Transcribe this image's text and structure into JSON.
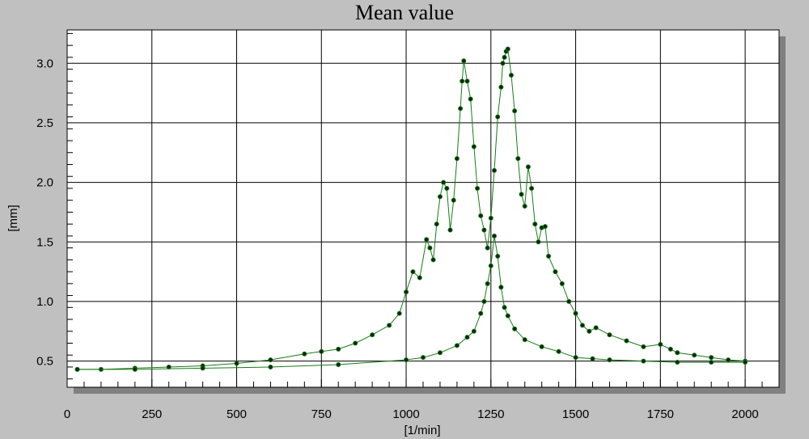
{
  "chart_data": {
    "type": "scatter",
    "title": "Mean value",
    "xlabel": "[1/min]",
    "ylabel": "[mm]",
    "xlim": [
      0,
      2100
    ],
    "ylim": [
      0.28,
      3.28
    ],
    "xticks": [
      0,
      250,
      500,
      750,
      1000,
      1250,
      1500,
      1750,
      2000
    ],
    "yticks": [
      0.5,
      1.0,
      1.5,
      2.0,
      2.5,
      3.0
    ],
    "xtick_labels": [
      "0",
      "250",
      "500",
      "750",
      "1000",
      "1250",
      "1500",
      "1750",
      "2000"
    ],
    "ytick_labels": [
      "0.5",
      "1.0",
      "1.5",
      "2.0",
      "2.5",
      "3.0"
    ],
    "grid": true,
    "colors": {
      "background": "#c0c0c0",
      "plot_background": "#ffffff",
      "shadow": "#808080",
      "grid": "#000000",
      "line": "#1a7a1a",
      "marker": "#0a2a0a"
    },
    "series": [
      {
        "x": [
          30,
          100,
          200,
          300,
          400,
          500,
          600,
          700,
          750,
          800,
          850,
          900,
          950,
          980,
          1000,
          1020,
          1040,
          1060,
          1070,
          1080,
          1090,
          1100,
          1110,
          1120,
          1130,
          1140,
          1150,
          1160,
          1165,
          1170,
          1180,
          1190,
          1200,
          1210,
          1220,
          1230,
          1240,
          1250,
          1260,
          1270,
          1280,
          1285,
          1290,
          1295,
          1300,
          1310,
          1320,
          1330,
          1340,
          1350,
          1360,
          1370,
          1380,
          1390,
          1400,
          1410,
          1420,
          1440,
          1460,
          1480,
          1500,
          1520,
          1540,
          1560,
          1600,
          1650,
          1700,
          1750,
          1780,
          1800,
          1850,
          1900,
          1950,
          2000
        ],
        "y": [
          0.43,
          0.43,
          0.44,
          0.45,
          0.46,
          0.48,
          0.51,
          0.56,
          0.58,
          0.6,
          0.65,
          0.72,
          0.8,
          0.9,
          1.08,
          1.25,
          1.2,
          1.52,
          1.45,
          1.35,
          1.65,
          1.88,
          2.0,
          1.95,
          1.6,
          1.85,
          2.2,
          2.62,
          2.85,
          3.02,
          2.85,
          2.7,
          2.3,
          1.95,
          1.72,
          1.6,
          1.45,
          1.7,
          2.1,
          2.55,
          2.8,
          3.0,
          3.05,
          3.1,
          3.12,
          2.9,
          2.6,
          2.2,
          1.9,
          1.8,
          2.13,
          1.95,
          1.65,
          1.5,
          1.62,
          1.63,
          1.38,
          1.25,
          1.15,
          1.0,
          0.9,
          0.8,
          0.75,
          0.78,
          0.72,
          0.67,
          0.62,
          0.64,
          0.6,
          0.57,
          0.55,
          0.53,
          0.51,
          0.5
        ]
      },
      {
        "x": [
          30,
          200,
          400,
          600,
          800,
          1000,
          1050,
          1100,
          1150,
          1180,
          1200,
          1220,
          1230,
          1240,
          1250,
          1260,
          1270,
          1280,
          1290,
          1300,
          1320,
          1350,
          1400,
          1450,
          1500,
          1550,
          1600,
          1700,
          1800,
          1900,
          2000
        ],
        "y": [
          0.43,
          0.43,
          0.44,
          0.45,
          0.47,
          0.51,
          0.53,
          0.57,
          0.63,
          0.7,
          0.75,
          0.9,
          1.0,
          1.15,
          1.3,
          1.55,
          1.38,
          1.12,
          0.95,
          0.88,
          0.77,
          0.68,
          0.62,
          0.58,
          0.53,
          0.52,
          0.51,
          0.5,
          0.49,
          0.49,
          0.49
        ]
      }
    ]
  }
}
